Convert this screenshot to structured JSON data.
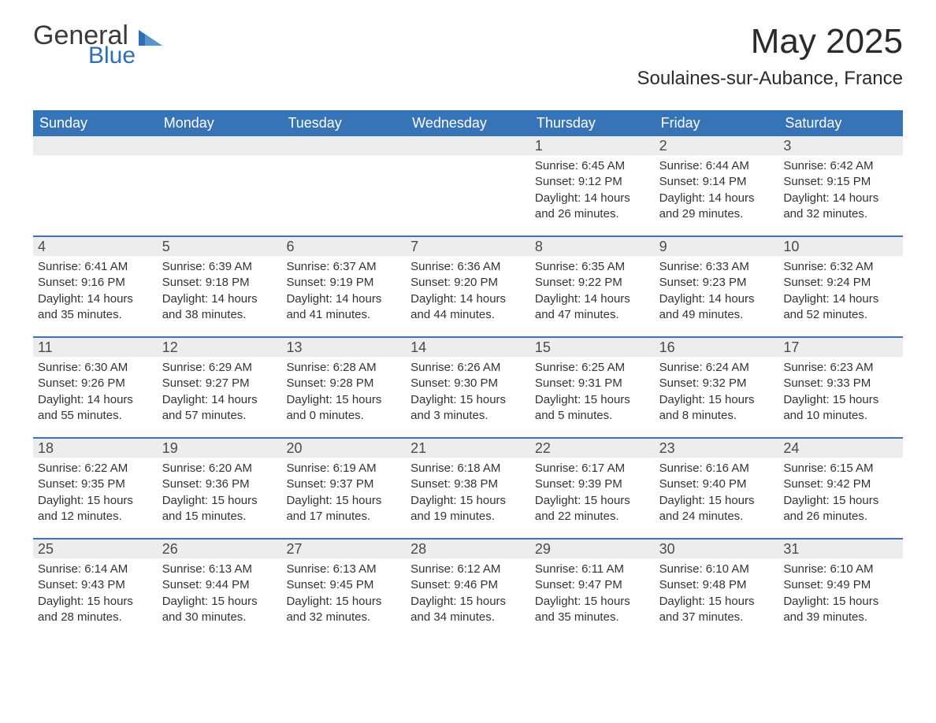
{
  "logo": {
    "word1": "General",
    "word2": "Blue",
    "accent_color": "#2f6eb5"
  },
  "header": {
    "title": "May 2025",
    "location": "Soulaines-sur-Aubance, France"
  },
  "calendar": {
    "header_bg": "#3773b7",
    "header_text_color": "#ffffff",
    "row_border_color": "#3773b7",
    "daynum_bg": "#ededed",
    "daynum_color": "#4a4a4a",
    "body_text_color": "#333333",
    "days_of_week": [
      "Sunday",
      "Monday",
      "Tuesday",
      "Wednesday",
      "Thursday",
      "Friday",
      "Saturday"
    ],
    "weeks": [
      [
        null,
        null,
        null,
        null,
        {
          "n": "1",
          "sunrise": "6:45 AM",
          "sunset": "9:12 PM",
          "dl_h": "14",
          "dl_m": "26"
        },
        {
          "n": "2",
          "sunrise": "6:44 AM",
          "sunset": "9:14 PM",
          "dl_h": "14",
          "dl_m": "29"
        },
        {
          "n": "3",
          "sunrise": "6:42 AM",
          "sunset": "9:15 PM",
          "dl_h": "14",
          "dl_m": "32"
        }
      ],
      [
        {
          "n": "4",
          "sunrise": "6:41 AM",
          "sunset": "9:16 PM",
          "dl_h": "14",
          "dl_m": "35"
        },
        {
          "n": "5",
          "sunrise": "6:39 AM",
          "sunset": "9:18 PM",
          "dl_h": "14",
          "dl_m": "38"
        },
        {
          "n": "6",
          "sunrise": "6:37 AM",
          "sunset": "9:19 PM",
          "dl_h": "14",
          "dl_m": "41"
        },
        {
          "n": "7",
          "sunrise": "6:36 AM",
          "sunset": "9:20 PM",
          "dl_h": "14",
          "dl_m": "44"
        },
        {
          "n": "8",
          "sunrise": "6:35 AM",
          "sunset": "9:22 PM",
          "dl_h": "14",
          "dl_m": "47"
        },
        {
          "n": "9",
          "sunrise": "6:33 AM",
          "sunset": "9:23 PM",
          "dl_h": "14",
          "dl_m": "49"
        },
        {
          "n": "10",
          "sunrise": "6:32 AM",
          "sunset": "9:24 PM",
          "dl_h": "14",
          "dl_m": "52"
        }
      ],
      [
        {
          "n": "11",
          "sunrise": "6:30 AM",
          "sunset": "9:26 PM",
          "dl_h": "14",
          "dl_m": "55"
        },
        {
          "n": "12",
          "sunrise": "6:29 AM",
          "sunset": "9:27 PM",
          "dl_h": "14",
          "dl_m": "57"
        },
        {
          "n": "13",
          "sunrise": "6:28 AM",
          "sunset": "9:28 PM",
          "dl_h": "15",
          "dl_m": "0"
        },
        {
          "n": "14",
          "sunrise": "6:26 AM",
          "sunset": "9:30 PM",
          "dl_h": "15",
          "dl_m": "3"
        },
        {
          "n": "15",
          "sunrise": "6:25 AM",
          "sunset": "9:31 PM",
          "dl_h": "15",
          "dl_m": "5"
        },
        {
          "n": "16",
          "sunrise": "6:24 AM",
          "sunset": "9:32 PM",
          "dl_h": "15",
          "dl_m": "8"
        },
        {
          "n": "17",
          "sunrise": "6:23 AM",
          "sunset": "9:33 PM",
          "dl_h": "15",
          "dl_m": "10"
        }
      ],
      [
        {
          "n": "18",
          "sunrise": "6:22 AM",
          "sunset": "9:35 PM",
          "dl_h": "15",
          "dl_m": "12"
        },
        {
          "n": "19",
          "sunrise": "6:20 AM",
          "sunset": "9:36 PM",
          "dl_h": "15",
          "dl_m": "15"
        },
        {
          "n": "20",
          "sunrise": "6:19 AM",
          "sunset": "9:37 PM",
          "dl_h": "15",
          "dl_m": "17"
        },
        {
          "n": "21",
          "sunrise": "6:18 AM",
          "sunset": "9:38 PM",
          "dl_h": "15",
          "dl_m": "19"
        },
        {
          "n": "22",
          "sunrise": "6:17 AM",
          "sunset": "9:39 PM",
          "dl_h": "15",
          "dl_m": "22"
        },
        {
          "n": "23",
          "sunrise": "6:16 AM",
          "sunset": "9:40 PM",
          "dl_h": "15",
          "dl_m": "24"
        },
        {
          "n": "24",
          "sunrise": "6:15 AM",
          "sunset": "9:42 PM",
          "dl_h": "15",
          "dl_m": "26"
        }
      ],
      [
        {
          "n": "25",
          "sunrise": "6:14 AM",
          "sunset": "9:43 PM",
          "dl_h": "15",
          "dl_m": "28"
        },
        {
          "n": "26",
          "sunrise": "6:13 AM",
          "sunset": "9:44 PM",
          "dl_h": "15",
          "dl_m": "30"
        },
        {
          "n": "27",
          "sunrise": "6:13 AM",
          "sunset": "9:45 PM",
          "dl_h": "15",
          "dl_m": "32"
        },
        {
          "n": "28",
          "sunrise": "6:12 AM",
          "sunset": "9:46 PM",
          "dl_h": "15",
          "dl_m": "34"
        },
        {
          "n": "29",
          "sunrise": "6:11 AM",
          "sunset": "9:47 PM",
          "dl_h": "15",
          "dl_m": "35"
        },
        {
          "n": "30",
          "sunrise": "6:10 AM",
          "sunset": "9:48 PM",
          "dl_h": "15",
          "dl_m": "37"
        },
        {
          "n": "31",
          "sunrise": "6:10 AM",
          "sunset": "9:49 PM",
          "dl_h": "15",
          "dl_m": "39"
        }
      ]
    ],
    "labels": {
      "sunrise": "Sunrise:",
      "sunset": "Sunset:",
      "daylight_prefix": "Daylight:",
      "hours_word": "hours",
      "and_word": "and",
      "minutes_word": "minutes."
    }
  }
}
